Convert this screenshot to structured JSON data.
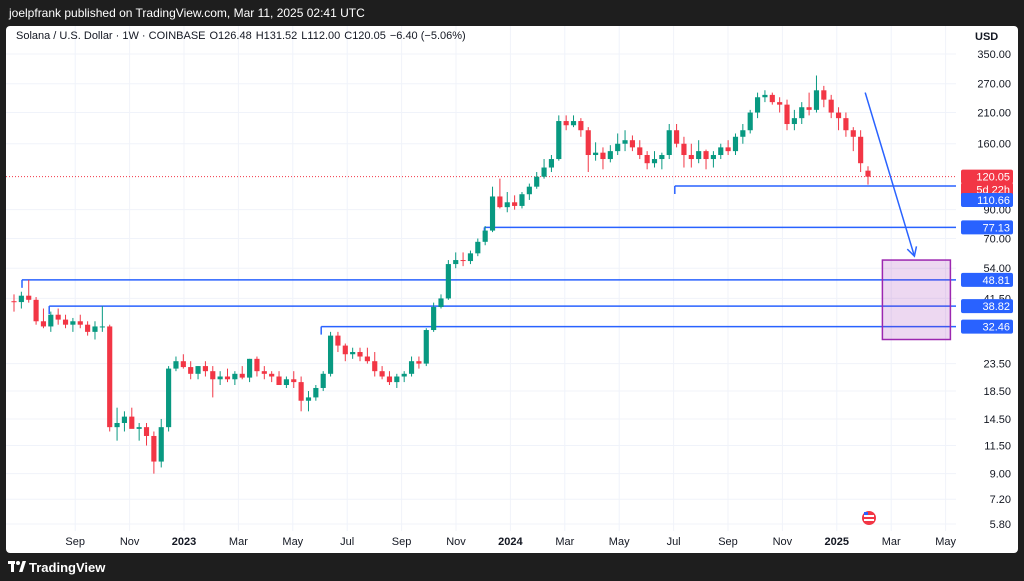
{
  "header": {
    "publisher": "joelpfrank published on TradingView.com, Mar 11, 2025 02:41 UTC"
  },
  "footer": {
    "brand": "TradingView"
  },
  "chart_data": {
    "type": "candlestick",
    "title": "Solana / U.S. Dollar · 1W · COINBASE",
    "ohlc_text": {
      "O": "O126.48",
      "H": "H131.52",
      "L": "L112.00",
      "C": "C120.05",
      "change": "−6.40 (−5.06%)"
    },
    "currency": "USD",
    "scale": "log",
    "y_ticks": [
      "350.00",
      "270.00",
      "210.00",
      "160.00",
      "90.00",
      "70.00",
      "54.00",
      "41.50",
      "23.50",
      "18.50",
      "14.50",
      "11.50",
      "9.00",
      "7.20",
      "5.80"
    ],
    "x_ticks": [
      "Sep",
      "Nov",
      "2023",
      "Mar",
      "May",
      "Jul",
      "Sep",
      "Nov",
      "2024",
      "Mar",
      "May",
      "Jul",
      "Sep",
      "Nov",
      "2025",
      "Mar",
      "May"
    ],
    "bold_x_ticks": [
      "2023",
      "2024",
      "2025"
    ],
    "colors": {
      "up": "#089981",
      "down": "#f23645",
      "level": "#2962ff",
      "zone": "#9c27b0"
    },
    "price_labels": [
      {
        "text": "120.05",
        "color": "#f23645"
      },
      {
        "text": "5d 22h",
        "color": "#f23645"
      },
      {
        "text": "110.66",
        "color": "#2962ff"
      },
      {
        "text": "77.13",
        "color": "#2962ff"
      },
      {
        "text": "48.81",
        "color": "#2962ff"
      },
      {
        "text": "38.82",
        "color": "#2962ff"
      },
      {
        "text": "32.46",
        "color": "#2962ff"
      }
    ],
    "horizontal_levels": [
      {
        "price": 110.66,
        "start": "2024-08"
      },
      {
        "price": 77.13,
        "start": "2024-01"
      },
      {
        "price": 48.81,
        "start": "2022-08"
      },
      {
        "price": 38.82,
        "start": "2022-09"
      },
      {
        "price": 32.46,
        "start": "2023-07"
      }
    ],
    "target_zone": {
      "from_price": 29.0,
      "to_price": 58.0,
      "start": "2025-04",
      "end": "2025-05"
    },
    "projection_arrow": {
      "from": [
        "2025-03",
        250
      ],
      "to": [
        "2025-04",
        55
      ]
    },
    "candles": [
      [
        40.5,
        43,
        37,
        40.2
      ],
      [
        40.2,
        44,
        38,
        42.5
      ],
      [
        42.5,
        48.8,
        40,
        41
      ],
      [
        41,
        42,
        33,
        34
      ],
      [
        34,
        38,
        32,
        32.5
      ],
      [
        32.5,
        37,
        31,
        36
      ],
      [
        36,
        38,
        33,
        34.5
      ],
      [
        34.5,
        36,
        32,
        33
      ],
      [
        33,
        35,
        31,
        34
      ],
      [
        34,
        36,
        32,
        33
      ],
      [
        33,
        34,
        30,
        31
      ],
      [
        31,
        34,
        29,
        32.5
      ],
      [
        32.5,
        38.8,
        31,
        32.5
      ],
      [
        32.5,
        33,
        13,
        13.5
      ],
      [
        13.5,
        16,
        12,
        14
      ],
      [
        14,
        15.5,
        13,
        14.8
      ],
      [
        14.8,
        16,
        13.5,
        13.3
      ],
      [
        13.3,
        14,
        12,
        13.5
      ],
      [
        13.5,
        14,
        11.5,
        12.5
      ],
      [
        12.5,
        13,
        9,
        10
      ],
      [
        10,
        14.5,
        9.5,
        13.5
      ],
      [
        13.5,
        23,
        13,
        22.5
      ],
      [
        22.5,
        25,
        22,
        24
      ],
      [
        24,
        25.5,
        22.5,
        22.8
      ],
      [
        22.8,
        24,
        20.5,
        21.5
      ],
      [
        21.5,
        23,
        20.5,
        23
      ],
      [
        23,
        24,
        21,
        22
      ],
      [
        22,
        23,
        17.5,
        20.5
      ],
      [
        20.5,
        22,
        19.5,
        21
      ],
      [
        21,
        22.5,
        20,
        20.5
      ],
      [
        20.5,
        22,
        19.5,
        21.5
      ],
      [
        21.5,
        23,
        20.5,
        20.8
      ],
      [
        20.8,
        24.5,
        20,
        24.5
      ],
      [
        24.5,
        25,
        21,
        22
      ],
      [
        22,
        23,
        20.5,
        21.5
      ],
      [
        21.5,
        22,
        20,
        21
      ],
      [
        21,
        22,
        19.5,
        19.5
      ],
      [
        19.5,
        21,
        19,
        20.5
      ],
      [
        20.5,
        22,
        19,
        20
      ],
      [
        20,
        21,
        15.5,
        17
      ],
      [
        17,
        18.5,
        15.5,
        17.5
      ],
      [
        17.5,
        19.5,
        17,
        19
      ],
      [
        19,
        22,
        18.5,
        21.5
      ],
      [
        21.5,
        31,
        21,
        30
      ],
      [
        30,
        31,
        26,
        27.5
      ],
      [
        27.5,
        28,
        24,
        25.5
      ],
      [
        25.5,
        27,
        24.5,
        26
      ],
      [
        26,
        27,
        24,
        25
      ],
      [
        25,
        27,
        23.5,
        24
      ],
      [
        24,
        26,
        21,
        22
      ],
      [
        22,
        23,
        20.5,
        21
      ],
      [
        21,
        22,
        19.5,
        20
      ],
      [
        20,
        21.5,
        19,
        21
      ],
      [
        21,
        22,
        20,
        21.5
      ],
      [
        21.5,
        25,
        21,
        24
      ],
      [
        24,
        25,
        22.5,
        23.5
      ],
      [
        23.5,
        32,
        23,
        31.5
      ],
      [
        31.5,
        40,
        31,
        38.5
      ],
      [
        38.5,
        43,
        38,
        41.5
      ],
      [
        41.5,
        58,
        41,
        56
      ],
      [
        56,
        62,
        54,
        58
      ],
      [
        58,
        62,
        55,
        57.5
      ],
      [
        57.5,
        63,
        56,
        61.5
      ],
      [
        61.5,
        70,
        60,
        68
      ],
      [
        68,
        78,
        66,
        75
      ],
      [
        75,
        110,
        74,
        101
      ],
      [
        101,
        118,
        91,
        92
      ],
      [
        92,
        105,
        88,
        96
      ],
      [
        96,
        102,
        90,
        93
      ],
      [
        93,
        105,
        91,
        103
      ],
      [
        103,
        113,
        98,
        110
      ],
      [
        110,
        125,
        108,
        120
      ],
      [
        120,
        140,
        118,
        130
      ],
      [
        130,
        145,
        125,
        140
      ],
      [
        140,
        205,
        138,
        195
      ],
      [
        195,
        205,
        180,
        188
      ],
      [
        188,
        205,
        185,
        195
      ],
      [
        195,
        200,
        170,
        180
      ],
      [
        180,
        185,
        125,
        145
      ],
      [
        145,
        162,
        138,
        148
      ],
      [
        148,
        155,
        128,
        140
      ],
      [
        140,
        158,
        136,
        150
      ],
      [
        150,
        175,
        145,
        160
      ],
      [
        160,
        180,
        150,
        165
      ],
      [
        165,
        172,
        150,
        155
      ],
      [
        155,
        165,
        140,
        145
      ],
      [
        145,
        150,
        128,
        135
      ],
      [
        135,
        150,
        130,
        140
      ],
      [
        140,
        148,
        128,
        145
      ],
      [
        145,
        190,
        140,
        180
      ],
      [
        180,
        190,
        155,
        160
      ],
      [
        160,
        170,
        130,
        145
      ],
      [
        145,
        160,
        130,
        140
      ],
      [
        140,
        165,
        135,
        150
      ],
      [
        150,
        152,
        128,
        140
      ],
      [
        140,
        150,
        130,
        145
      ],
      [
        145,
        160,
        140,
        155
      ],
      [
        155,
        165,
        145,
        150
      ],
      [
        150,
        175,
        145,
        170
      ],
      [
        170,
        190,
        160,
        180
      ],
      [
        180,
        215,
        175,
        210
      ],
      [
        210,
        250,
        200,
        240
      ],
      [
        240,
        255,
        230,
        245
      ],
      [
        245,
        250,
        225,
        230
      ],
      [
        230,
        240,
        210,
        225
      ],
      [
        225,
        235,
        180,
        190
      ],
      [
        190,
        215,
        180,
        200
      ],
      [
        200,
        230,
        190,
        220
      ],
      [
        220,
        250,
        205,
        215
      ],
      [
        215,
        290,
        210,
        255
      ],
      [
        255,
        265,
        220,
        235
      ],
      [
        235,
        245,
        200,
        210
      ],
      [
        210,
        220,
        180,
        200
      ],
      [
        200,
        210,
        170,
        180
      ],
      [
        180,
        185,
        150,
        170
      ],
      [
        170,
        180,
        125,
        135
      ],
      [
        126.48,
        131.52,
        112,
        120.05
      ]
    ]
  }
}
